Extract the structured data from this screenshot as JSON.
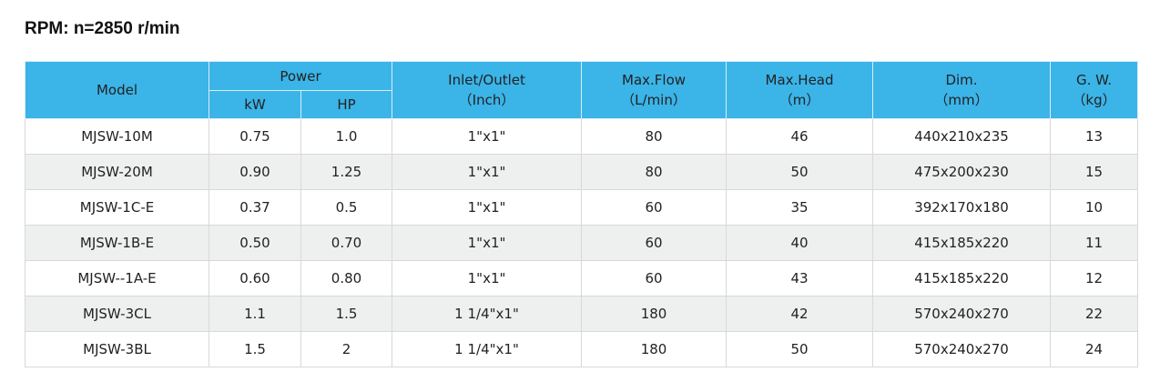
{
  "title": "RPM: n=2850 r/min",
  "headers": {
    "model": "Model",
    "power": "Power",
    "kw": "kW",
    "hp": "HP",
    "inlet": "Inlet/Outlet",
    "inlet_unit": "（Inch）",
    "flow": "Max.Flow",
    "flow_unit": "（L/min）",
    "head": "Max.Head",
    "head_unit": "（m）",
    "dim": "Dim.",
    "dim_unit": "（mm）",
    "gw": "G. W.",
    "gw_unit": "（kg）"
  },
  "rows": [
    [
      "MJSW-10M",
      "0.75",
      "1.0",
      "1\"x1\"",
      "80",
      "46",
      "440x210x235",
      "13"
    ],
    [
      "MJSW-20M",
      "0.90",
      "1.25",
      "1\"x1\"",
      "80",
      "50",
      "475x200x230",
      "15"
    ],
    [
      "MJSW-1C-E",
      "0.37",
      "0.5",
      "1\"x1\"",
      "60",
      "35",
      "392x170x180",
      "10"
    ],
    [
      "MJSW-1B-E",
      "0.50",
      "0.70",
      "1\"x1\"",
      "60",
      "40",
      "415x185x220",
      "11"
    ],
    [
      "MJSW--1A-E",
      "0.60",
      "0.80",
      "1\"x1\"",
      "60",
      "43",
      "415x185x220",
      "12"
    ],
    [
      "MJSW-3CL",
      "1.1",
      "1.5",
      "1 1/4\"x1\"",
      "180",
      "42",
      "570x240x270",
      "22"
    ],
    [
      "MJSW-3BL",
      "1.5",
      "2",
      "1 1/4\"x1\"",
      "180",
      "50",
      "570x240x270",
      "24"
    ]
  ],
  "colors": {
    "header_bg": "#3bb4e8",
    "alt_row": "#eef0f0"
  }
}
